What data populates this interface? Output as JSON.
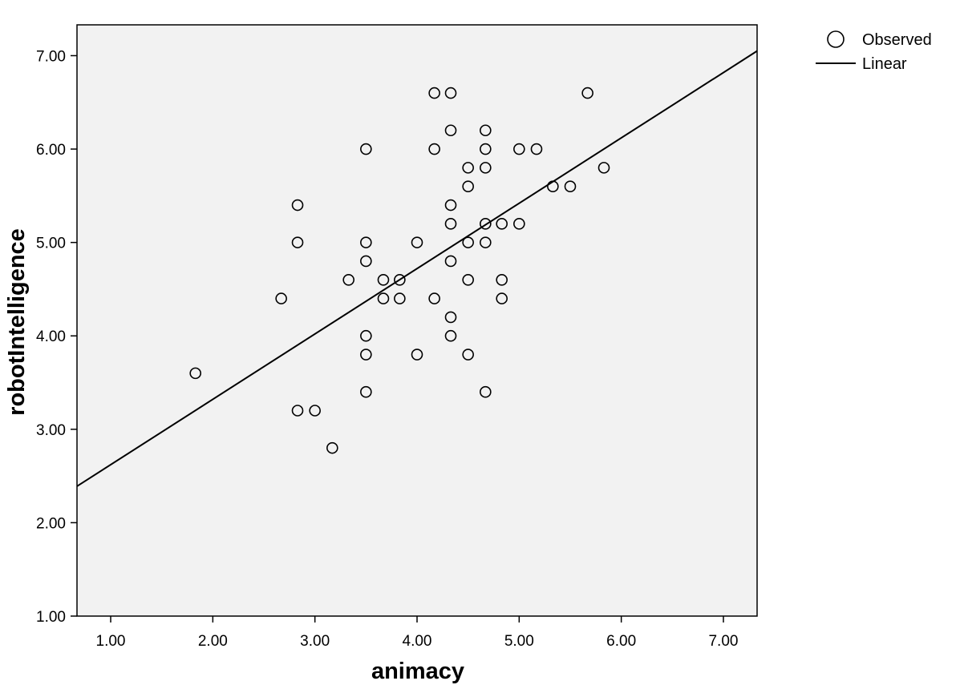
{
  "chart_data": {
    "type": "scatter",
    "xlabel": "animacy",
    "ylabel": "robotIntelligence",
    "xlim": [
      0.67,
      7.33
    ],
    "ylim": [
      1.0,
      7.33
    ],
    "x_ticks": [
      "1.00",
      "2.00",
      "3.00",
      "4.00",
      "5.00",
      "6.00",
      "7.00"
    ],
    "y_ticks": [
      "1.00",
      "2.00",
      "3.00",
      "4.00",
      "5.00",
      "6.00",
      "7.00"
    ],
    "grid": false,
    "legend": {
      "position": "top-right",
      "entries": [
        "Observed",
        "Linear"
      ]
    },
    "series": [
      {
        "name": "Observed",
        "kind": "points",
        "points": [
          [
            1.83,
            3.6
          ],
          [
            2.67,
            4.4
          ],
          [
            2.83,
            5.4
          ],
          [
            2.83,
            5.0
          ],
          [
            2.83,
            3.2
          ],
          [
            3.0,
            3.2
          ],
          [
            3.17,
            2.8
          ],
          [
            3.33,
            4.6
          ],
          [
            3.5,
            6.0
          ],
          [
            3.5,
            5.0
          ],
          [
            3.5,
            4.8
          ],
          [
            3.5,
            4.0
          ],
          [
            3.5,
            3.8
          ],
          [
            3.5,
            3.4
          ],
          [
            3.67,
            4.6
          ],
          [
            3.67,
            4.4
          ],
          [
            3.83,
            4.6
          ],
          [
            3.83,
            4.4
          ],
          [
            4.0,
            5.0
          ],
          [
            4.0,
            3.8
          ],
          [
            4.17,
            6.6
          ],
          [
            4.17,
            6.0
          ],
          [
            4.17,
            4.4
          ],
          [
            4.33,
            6.6
          ],
          [
            4.33,
            6.2
          ],
          [
            4.33,
            5.4
          ],
          [
            4.33,
            5.2
          ],
          [
            4.33,
            4.8
          ],
          [
            4.33,
            4.2
          ],
          [
            4.33,
            4.0
          ],
          [
            4.5,
            5.8
          ],
          [
            4.5,
            5.6
          ],
          [
            4.5,
            5.0
          ],
          [
            4.5,
            4.6
          ],
          [
            4.5,
            3.8
          ],
          [
            4.67,
            6.2
          ],
          [
            4.67,
            6.0
          ],
          [
            4.67,
            5.8
          ],
          [
            4.67,
            5.2
          ],
          [
            4.67,
            5.0
          ],
          [
            4.67,
            3.4
          ],
          [
            4.83,
            5.2
          ],
          [
            4.83,
            4.6
          ],
          [
            4.83,
            4.4
          ],
          [
            5.0,
            6.0
          ],
          [
            5.0,
            5.2
          ],
          [
            5.17,
            6.0
          ],
          [
            5.33,
            5.6
          ],
          [
            5.5,
            5.6
          ],
          [
            5.67,
            6.6
          ],
          [
            5.83,
            5.8
          ]
        ]
      },
      {
        "name": "Linear",
        "kind": "line",
        "points": [
          [
            0.67,
            2.39
          ],
          [
            7.33,
            7.05
          ]
        ]
      }
    ]
  }
}
